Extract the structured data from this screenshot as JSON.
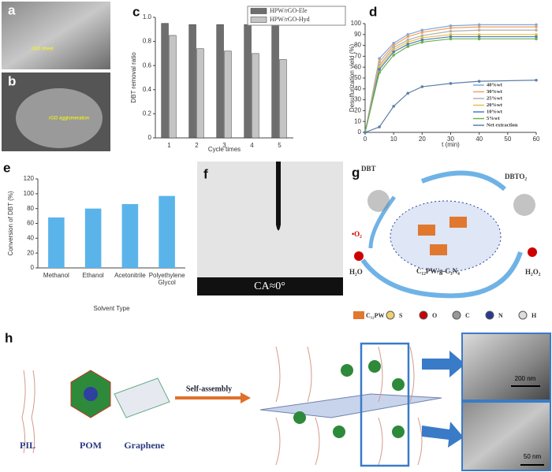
{
  "chart_data": [
    {
      "type": "bar",
      "xlabel": "Cycle times",
      "ylabel": "DBT removal ratio",
      "categories": [
        "1",
        "2",
        "3",
        "4",
        "5"
      ],
      "series": [
        {
          "name": "HPW/rGO-Ele",
          "color": "#6e6e6e",
          "values": [
            0.95,
            0.94,
            0.94,
            0.94,
            0.94
          ]
        },
        {
          "name": "HPW/rGO-Hyd",
          "color": "#c4c4c4",
          "values": [
            0.85,
            0.74,
            0.72,
            0.7,
            0.65
          ]
        }
      ],
      "ylim": [
        0,
        1
      ],
      "yticks": [
        0,
        0.2,
        0.4,
        0.6,
        0.8,
        {
          "value": 1,
          "label": "1.0"
        }
      ],
      "grid": false,
      "legend": "upper right"
    },
    {
      "type": "line",
      "xlabel": "t (min)",
      "ylabel": "Desulfurization yield (%)",
      "x": [
        0,
        5,
        10,
        15,
        20,
        30,
        40,
        60
      ],
      "series": [
        {
          "name": "40%wt",
          "color": "#7fa7d8",
          "values": [
            0,
            68,
            82,
            90,
            94,
            98,
            99,
            99
          ]
        },
        {
          "name": "30%wt",
          "color": "#f0a060",
          "values": [
            0,
            65,
            80,
            88,
            92,
            96,
            97,
            97
          ]
        },
        {
          "name": "25%wt",
          "color": "#b0b0b0",
          "values": [
            0,
            62,
            78,
            85,
            89,
            93,
            94,
            94
          ]
        },
        {
          "name": "20%wt",
          "color": "#e8c040",
          "values": [
            0,
            60,
            76,
            83,
            87,
            90,
            90,
            90
          ]
        },
        {
          "name": "10%wt",
          "color": "#4a7cc0",
          "values": [
            0,
            58,
            74,
            81,
            85,
            88,
            88,
            88
          ]
        },
        {
          "name": "5%wt",
          "color": "#70b050",
          "values": [
            0,
            55,
            71,
            79,
            83,
            86,
            86,
            86
          ]
        },
        {
          "name": "Net extraction",
          "color": "#5b7fa8",
          "values": [
            0,
            5,
            24,
            36,
            42,
            45,
            47,
            48
          ]
        }
      ],
      "xlim": [
        0,
        60
      ],
      "xticks": [
        0,
        10,
        20,
        30,
        40,
        50,
        60
      ],
      "ylim": [
        0,
        100
      ],
      "yticks": [
        0,
        10,
        20,
        30,
        40,
        50,
        60,
        70,
        80,
        90,
        100
      ],
      "grid": false,
      "legend": "lower right"
    },
    {
      "type": "bar",
      "xlabel": "Solvent Type",
      "ylabel": "Conversion of DBT (%)",
      "categories": [
        "Methanol",
        "Ethanol",
        "Acetonitrile",
        "Polyethylene Glycol"
      ],
      "values": [
        68,
        80,
        86,
        97
      ],
      "color": "#5ab4ea",
      "ylim": [
        0,
        120
      ],
      "yticks": [
        0,
        20,
        40,
        60,
        80,
        100,
        120
      ],
      "grid": false
    }
  ],
  "panels": {
    "letters": [
      "a",
      "b",
      "c",
      "d",
      "e",
      "f",
      "g",
      "h"
    ],
    "a": "rGO sheet",
    "b": "rGO agglomeration",
    "f": "CA≈0°",
    "g": {
      "dbt": "DBT",
      "dbto2": "DBTO₂",
      "radical": "•O₂",
      "water": "H₂O",
      "peroxide": "H₂O₂",
      "catalyst": "C₁₂PW/g-C₃N₄",
      "legend": [
        "C₁₂PW",
        "S",
        "O",
        "C",
        "N",
        "H"
      ]
    },
    "h": {
      "pil": "PIL",
      "pom": "POM",
      "graphene": "Graphene",
      "arrow": "Self-assembly",
      "scale1": "200 nm",
      "scale2": "50 nm"
    }
  }
}
